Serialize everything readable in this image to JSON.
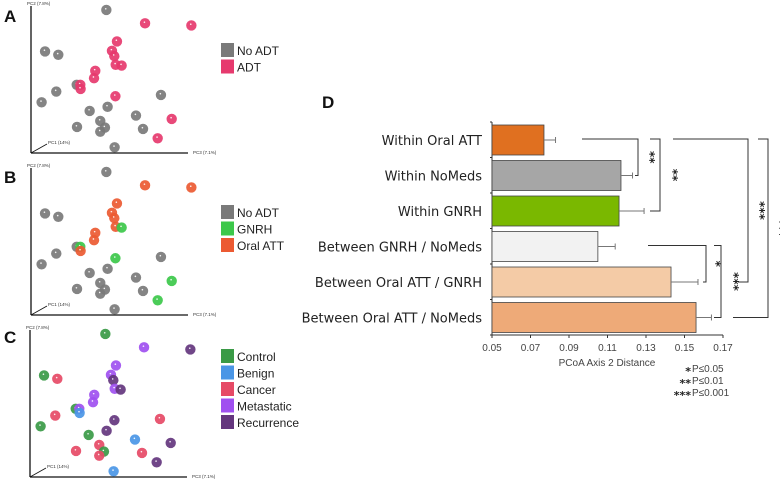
{
  "chart_data": [
    {
      "type": "scatter",
      "panel": "A",
      "axis_labels": {
        "pc2": "PC2 (7.8%)",
        "pc1": "PC1 (14%)",
        "pc3": "PC3 (7.1%)"
      },
      "group_key": "adt",
      "legend": [
        {
          "label": "No ADT",
          "color": "#7a7a7a"
        },
        {
          "label": "ADT",
          "color": "#e63a6e"
        }
      ]
    },
    {
      "type": "scatter",
      "panel": "B",
      "axis_labels": {
        "pc2": "PC2 (7.8%)",
        "pc1": "PC1 (14%)",
        "pc3": "PC3 (7.1%)"
      },
      "group_key": "treatment",
      "legend": [
        {
          "label": "No ADT",
          "color": "#7a7a7a"
        },
        {
          "label": "GNRH",
          "color": "#3cc84a"
        },
        {
          "label": "Oral ATT",
          "color": "#ec5a32"
        }
      ]
    },
    {
      "type": "scatter",
      "panel": "C",
      "axis_labels": {
        "pc2": "PC2 (7.8%)",
        "pc1": "PC1 (14%)",
        "pc3": "PC3 (7.1%)"
      },
      "group_key": "disease",
      "legend": [
        {
          "label": "Control",
          "color": "#3a9a46"
        },
        {
          "label": "Benign",
          "color": "#4a96e6"
        },
        {
          "label": "Cancer",
          "color": "#e64a66"
        },
        {
          "label": "Metastatic",
          "color": "#a050f0"
        },
        {
          "label": "Recurrence",
          "color": "#64367e"
        }
      ]
    },
    {
      "type": "bar",
      "panel": "D",
      "orientation": "horizontal",
      "xlabel": "PCoA Axis 2 Distance",
      "xlim": [
        0.05,
        0.17
      ],
      "xticks": [
        "0.05",
        "0.07",
        "0.09",
        "0.11",
        "0.13",
        "0.15",
        "0.17"
      ],
      "categories": [
        "Within Oral ATT",
        "Within NoMeds",
        "Within GNRH",
        "Between  GNRH / NoMeds",
        "Between  Oral ATT / GNRH",
        "Between  Oral ATT / NoMeds"
      ],
      "values": [
        0.077,
        0.117,
        0.116,
        0.105,
        0.143,
        0.156
      ],
      "errors": [
        0.006,
        0.006,
        0.013,
        0.009,
        0.014,
        0.008
      ],
      "colors": [
        "#e07020",
        "#a6a6a6",
        "#7ab800",
        "#f2f2f2",
        "#f4cba6",
        "#eeaa78"
      ],
      "significance": [
        {
          "from": 0,
          "to": 1,
          "stars": "**"
        },
        {
          "from": 0,
          "to": 2,
          "stars": "**"
        },
        {
          "from": 0,
          "to": 4,
          "stars": "***"
        },
        {
          "from": 0,
          "to": 5,
          "stars": "***"
        },
        {
          "from": 3,
          "to": 4,
          "stars": "*"
        },
        {
          "from": 3,
          "to": 5,
          "stars": "***"
        }
      ],
      "sig_legend": [
        {
          "stars": "*",
          "text": "P≤0.05"
        },
        {
          "stars": "**",
          "text": "P≤0.01"
        },
        {
          "stars": "***",
          "text": "P≤0.001"
        }
      ]
    }
  ],
  "samples": [
    {
      "pc3": 48.3,
      "pc2": 97.3,
      "adt": 0,
      "treatment": 0,
      "disease": 0
    },
    {
      "pc3": 9.0,
      "pc2": 69.1,
      "adt": 0,
      "treatment": 0,
      "disease": 0
    },
    {
      "pc3": 17.5,
      "pc2": 66.8,
      "adt": 0,
      "treatment": 0,
      "disease": 2
    },
    {
      "pc3": 29.3,
      "pc2": 46.4,
      "adt": 0,
      "treatment": 0,
      "disease": 0
    },
    {
      "pc3": 16.2,
      "pc2": 41.8,
      "adt": 0,
      "treatment": 0,
      "disease": 2
    },
    {
      "pc3": 6.8,
      "pc2": 34.5,
      "adt": 0,
      "treatment": 0,
      "disease": 0
    },
    {
      "pc3": 37.6,
      "pc2": 28.6,
      "adt": 0,
      "treatment": 0,
      "disease": 0
    },
    {
      "pc3": 49.1,
      "pc2": 31.4,
      "adt": 0,
      "treatment": 0,
      "disease": 4
    },
    {
      "pc3": 44.4,
      "pc2": 21.8,
      "adt": 0,
      "treatment": 0,
      "disease": 2
    },
    {
      "pc3": 47.4,
      "pc2": 17.3,
      "adt": 0,
      "treatment": 0,
      "disease": 0
    },
    {
      "pc3": 44.4,
      "pc2": 14.5,
      "adt": 0,
      "treatment": 0,
      "disease": 2
    },
    {
      "pc3": 29.5,
      "pc2": 17.7,
      "adt": 0,
      "treatment": 0,
      "disease": 2
    },
    {
      "pc3": 67.3,
      "pc2": 25.5,
      "adt": 0,
      "treatment": 0,
      "disease": 1
    },
    {
      "pc3": 83.3,
      "pc2": 39.5,
      "adt": 0,
      "treatment": 0,
      "disease": 2
    },
    {
      "pc3": 71.8,
      "pc2": 16.4,
      "adt": 0,
      "treatment": 0,
      "disease": 2
    },
    {
      "pc3": 53.6,
      "pc2": 3.9,
      "adt": 0,
      "treatment": 0,
      "disease": 1
    },
    {
      "pc3": 73.1,
      "pc2": 88.2,
      "adt": 1,
      "treatment": 2,
      "disease": 3
    },
    {
      "pc3": 102.8,
      "pc2": 86.8,
      "adt": 1,
      "treatment": 2,
      "disease": 4
    },
    {
      "pc3": 55.1,
      "pc2": 75.9,
      "adt": 1,
      "treatment": 2,
      "disease": 3
    },
    {
      "pc3": 51.9,
      "pc2": 69.5,
      "adt": 1,
      "treatment": 2,
      "disease": 3
    },
    {
      "pc3": 53.4,
      "pc2": 65.9,
      "adt": 1,
      "treatment": 2,
      "disease": 4
    },
    {
      "pc3": 54.3,
      "pc2": 60.0,
      "adt": 1,
      "treatment": 2,
      "disease": 3
    },
    {
      "pc3": 58.1,
      "pc2": 59.5,
      "adt": 1,
      "treatment": 1,
      "disease": 4
    },
    {
      "pc3": 41.2,
      "pc2": 55.9,
      "adt": 1,
      "treatment": 2,
      "disease": 3
    },
    {
      "pc3": 40.4,
      "pc2": 50.9,
      "adt": 1,
      "treatment": 2,
      "disease": 3
    },
    {
      "pc3": 31.6,
      "pc2": 46.4,
      "adt": 1,
      "treatment": 1,
      "disease": 3
    },
    {
      "pc3": 31.8,
      "pc2": 43.6,
      "adt": 1,
      "treatment": 2,
      "disease": 1
    },
    {
      "pc3": 54.1,
      "pc2": 38.6,
      "adt": 1,
      "treatment": 1,
      "disease": 4
    },
    {
      "pc3": 90.2,
      "pc2": 23.2,
      "adt": 1,
      "treatment": 1,
      "disease": 4
    },
    {
      "pc3": 81.2,
      "pc2": 10.0,
      "adt": 1,
      "treatment": 1,
      "disease": 4
    }
  ]
}
